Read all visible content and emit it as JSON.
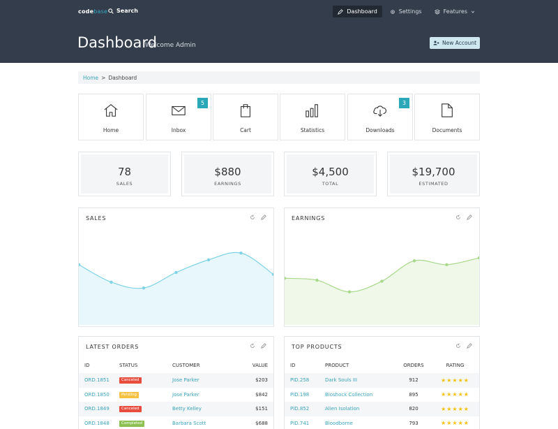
{
  "header": {
    "logo_main": "code",
    "logo_accent": "base",
    "search_label": "Search",
    "nav": [
      {
        "label": "Dashboard",
        "icon": "pencil-icon"
      },
      {
        "label": "Settings",
        "icon": "gear-icon"
      },
      {
        "label": "Features",
        "icon": "layers-icon"
      }
    ],
    "title": "Dashboard",
    "subtitle": "Welcome Admin",
    "new_account_label": "New Account"
  },
  "breadcrumb": {
    "home": "Home",
    "separator": ">",
    "current": "Dashboard"
  },
  "tiles": [
    {
      "label": "Home",
      "icon": "home-icon",
      "badge": ""
    },
    {
      "label": "Inbox",
      "icon": "envelope-icon",
      "badge": "5"
    },
    {
      "label": "Cart",
      "icon": "shopping-bag-icon",
      "badge": ""
    },
    {
      "label": "Statistics",
      "icon": "bar-chart-icon",
      "badge": ""
    },
    {
      "label": "Downloads",
      "icon": "cloud-download-icon",
      "badge": "3"
    },
    {
      "label": "Documents",
      "icon": "document-icon",
      "badge": ""
    }
  ],
  "stats": [
    {
      "value": "78",
      "label": "SALES"
    },
    {
      "value": "$880",
      "label": "EARNINGS"
    },
    {
      "value": "$4,500",
      "label": "TOTAL"
    },
    {
      "value": "$19,700",
      "label": "ESTIMATED"
    }
  ],
  "colors": {
    "header_bg": "#333d4b",
    "accent": "#2aa8b8",
    "sales_line": "#7fd3e6",
    "sales_fill": "#e8f7fb",
    "earnings_line": "#a8d98a",
    "earnings_fill": "#f0f8ea",
    "canceled": "#e84c3d",
    "pending": "#f6c243",
    "completed": "#8cc152"
  },
  "panels": {
    "sales_title": "SALES",
    "earnings_title": "EARNINGS",
    "orders_title": "LATEST ORDERS",
    "products_title": "TOP PRODUCTS"
  },
  "chart_data": [
    {
      "type": "area",
      "x": [
        1,
        2,
        3,
        4,
        5,
        6,
        7
      ],
      "values": [
        62,
        44,
        38,
        54,
        67,
        74,
        52
      ],
      "ylim": [
        0,
        100
      ]
    },
    {
      "type": "area",
      "x": [
        1,
        2,
        3,
        4,
        5,
        6,
        7
      ],
      "values": [
        48,
        46,
        34,
        45,
        66,
        62,
        69
      ],
      "ylim": [
        0,
        100
      ]
    }
  ],
  "orders": {
    "headers": [
      "ID",
      "STATUS",
      "CUSTOMER",
      "VALUE"
    ],
    "rows": [
      {
        "id": "ORD.1851",
        "status": "Canceled",
        "status_color": "#e84c3d",
        "customer": "Jose Parker",
        "value": "$203"
      },
      {
        "id": "ORD.1850",
        "status": "Pending",
        "status_color": "#f6c243",
        "customer": "Jose Parker",
        "value": "$842"
      },
      {
        "id": "ORD.1849",
        "status": "Canceled",
        "status_color": "#e84c3d",
        "customer": "Betty Kelley",
        "value": "$151"
      },
      {
        "id": "ORD.1848",
        "status": "Completed",
        "status_color": "#8cc152",
        "customer": "Barbara Scott",
        "value": "$688"
      }
    ]
  },
  "products": {
    "headers": [
      "ID",
      "PRODUCT",
      "ORDERS",
      "RATING"
    ],
    "rows": [
      {
        "id": "PID.258",
        "product": "Dark Souls III",
        "orders": "912",
        "rating": 5
      },
      {
        "id": "PID.198",
        "product": "Bioshock Collection",
        "orders": "895",
        "rating": 5
      },
      {
        "id": "PID.852",
        "product": "Alien Isolation",
        "orders": "820",
        "rating": 5
      },
      {
        "id": "PID.741",
        "product": "Bloodborne",
        "orders": "793",
        "rating": 5
      }
    ]
  }
}
